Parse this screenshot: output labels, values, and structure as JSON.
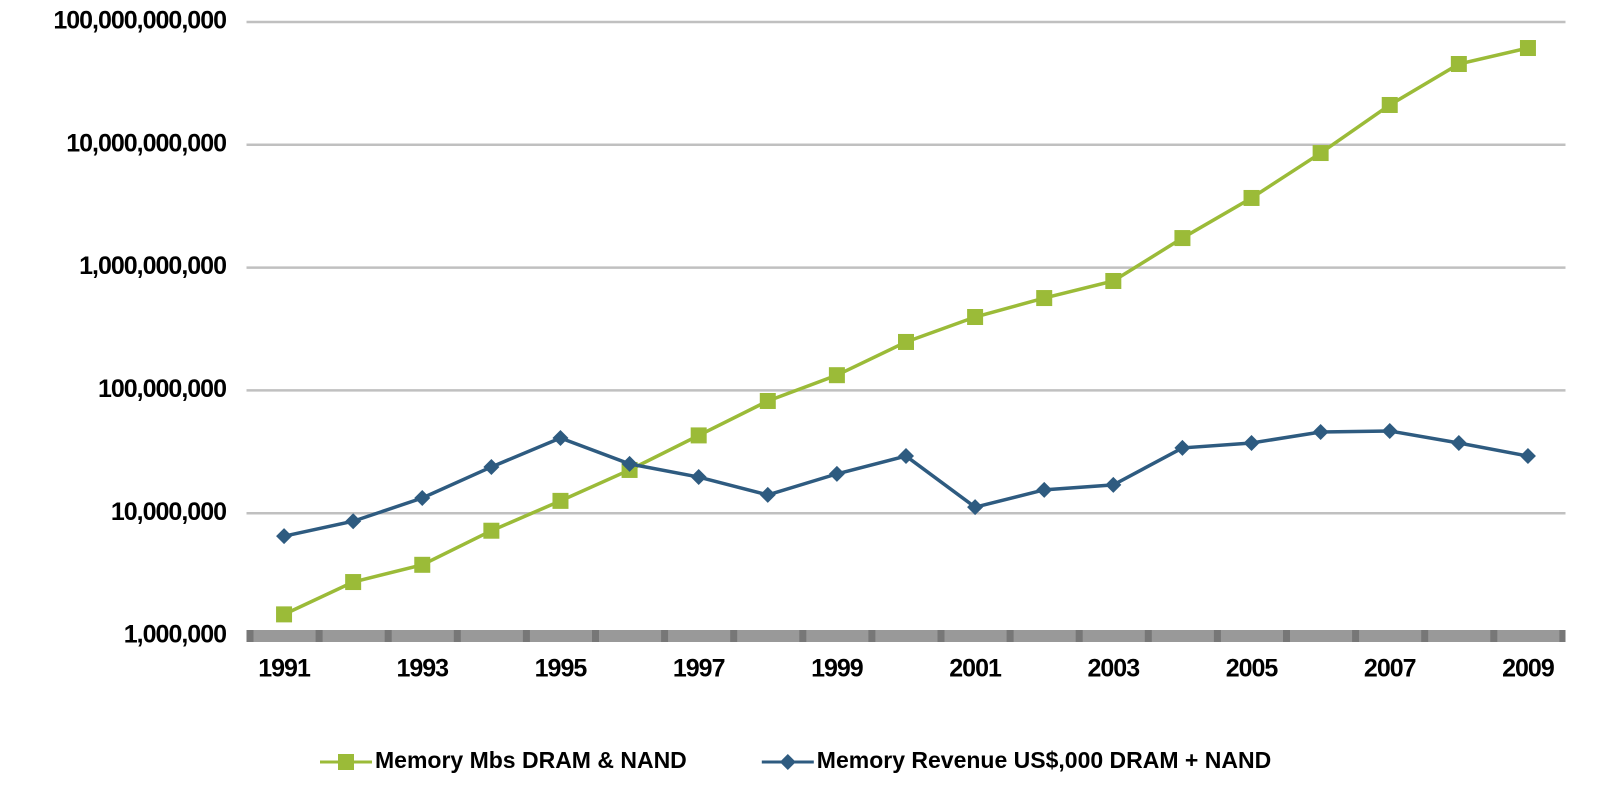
{
  "chart_data": {
    "type": "line",
    "x": [
      1991,
      1992,
      1993,
      1994,
      1995,
      1996,
      1997,
      1998,
      1999,
      2000,
      2001,
      2002,
      2003,
      2004,
      2005,
      2006,
      2007,
      2008,
      2009
    ],
    "xlim": [
      1990.5,
      2009.5
    ],
    "xticks": [
      1991,
      1993,
      1995,
      1997,
      1999,
      2001,
      2003,
      2005,
      2007,
      2009
    ],
    "ylim": [
      1000000,
      100000000000
    ],
    "log_y": true,
    "grid": true,
    "legend": "bottom",
    "yticks": [
      {
        "value": 1000000,
        "label": "1,000,000"
      },
      {
        "value": 10000000,
        "label": "10,000,000"
      },
      {
        "value": 100000000,
        "label": "100,000,000"
      },
      {
        "value": 1000000000,
        "label": "1,000,000,000"
      },
      {
        "value": 10000000000,
        "label": "10,000,000,000"
      },
      {
        "value": 100000000000,
        "label": "100,000,000,000"
      }
    ],
    "series": [
      {
        "name": "Memory Mbs DRAM & NAND",
        "color": "#9bbb38",
        "marker": "square",
        "values": [
          1500000,
          2750000,
          3800000,
          7200000,
          12600000,
          22500000,
          43000000,
          82000000,
          133000000,
          248000000,
          396000000,
          565000000,
          778000000,
          1740000000,
          3690000000,
          8570000000,
          21100000000,
          45500000000,
          61400000000
        ]
      },
      {
        "name": "Memory Revenue US$,000 DRAM + NAND",
        "color": "#2e5b80",
        "marker": "diamond",
        "values": [
          6500000,
          8600000,
          13300000,
          23800000,
          41000000,
          25200000,
          19700000,
          14100000,
          20900000,
          29200000,
          11200000,
          15500000,
          17000000,
          34000000,
          37300000,
          45800000,
          46700000,
          37300000,
          29200000
        ]
      }
    ]
  }
}
